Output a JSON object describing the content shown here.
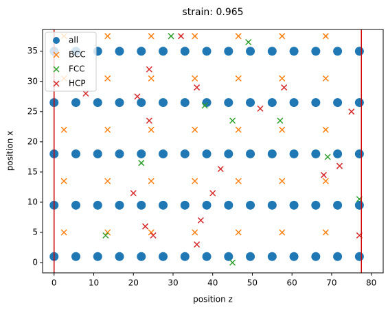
{
  "chart_data": {
    "type": "scatter",
    "title": "strain: 0.965",
    "x_label": "position z",
    "y_label": "position x",
    "xlim": [
      -2.9,
      83
    ],
    "ylim": [
      -1.7,
      38.6
    ],
    "xticks": [
      0,
      10,
      20,
      30,
      40,
      50,
      60,
      70,
      80
    ],
    "yticks": [
      0,
      5,
      10,
      15,
      20,
      25,
      30,
      35
    ],
    "legend": "upper left",
    "vlines": [
      {
        "value": 0,
        "color": "#cc0000"
      },
      {
        "value": 77.5,
        "color": "#cc0000"
      }
    ],
    "series": [
      {
        "name": "all",
        "color": "#1f77b4",
        "marker": "o",
        "x": [
          0,
          5.5,
          11,
          16.5,
          22,
          27.5,
          33,
          38.5,
          44,
          49.5,
          55,
          60.5,
          66,
          71.5,
          77,
          0,
          5.5,
          11,
          16.5,
          22,
          27.5,
          33,
          38.5,
          44,
          49.5,
          55,
          60.5,
          66,
          71.5,
          77,
          0,
          5.5,
          11,
          16.5,
          22,
          27.5,
          33,
          38.5,
          44,
          49.5,
          55,
          60.5,
          66,
          71.5,
          77,
          0,
          5.5,
          11,
          16.5,
          22,
          27.5,
          33,
          38.5,
          44,
          49.5,
          55,
          60.5,
          66,
          71.5,
          77,
          0,
          5.5,
          11,
          16.5,
          22,
          27.5,
          33,
          38.5,
          44,
          49.5,
          55,
          60.5,
          66,
          71.5,
          77
        ],
        "y": [
          1,
          1,
          1,
          1,
          1,
          1,
          1,
          1,
          1,
          1,
          1,
          1,
          1,
          1,
          1,
          9.5,
          9.5,
          9.5,
          9.5,
          9.5,
          9.5,
          9.5,
          9.5,
          9.5,
          9.5,
          9.5,
          9.5,
          9.5,
          9.5,
          9.5,
          18,
          18,
          18,
          18,
          18,
          18,
          18,
          18,
          18,
          18,
          18,
          18,
          18,
          18,
          18,
          26.5,
          26.5,
          26.5,
          26.5,
          26.5,
          26.5,
          26.5,
          26.5,
          26.5,
          26.5,
          26.5,
          26.5,
          26.5,
          26.5,
          26.5,
          35,
          35,
          35,
          35,
          35,
          35,
          35,
          35,
          35,
          35,
          35,
          35,
          35,
          35,
          35
        ]
      },
      {
        "name": "BCC",
        "color": "#ff7f0e",
        "marker": "x",
        "x": [
          2.5,
          13.5,
          24.5,
          35.5,
          46.5,
          57.5,
          68.5,
          2.5,
          13.5,
          24.5,
          35.5,
          46.5,
          57.5,
          68.5,
          2.5,
          13.5,
          24.5,
          35.5,
          46.5,
          57.5,
          68.5,
          2.5,
          13.5,
          24.5,
          35.5,
          46.5,
          57.5,
          68.5,
          2.5,
          13.5,
          24.5,
          35.5,
          46.5,
          57.5,
          68.5
        ],
        "y": [
          5,
          5,
          5,
          5,
          5,
          5,
          5,
          13.5,
          13.5,
          13.5,
          13.5,
          13.5,
          13.5,
          13.5,
          22,
          22,
          22,
          22,
          22,
          22,
          22,
          30.5,
          30.5,
          30.5,
          30.5,
          30.5,
          30.5,
          30.5,
          37.5,
          37.5,
          37.5,
          37.5,
          37.5,
          37.5,
          37.5
        ]
      },
      {
        "name": "FCC",
        "color": "#2ca02c",
        "marker": "x",
        "x": [
          29.5,
          49,
          38,
          45,
          57,
          22,
          69,
          13,
          45,
          77
        ],
        "y": [
          37.5,
          36.5,
          26,
          23.5,
          23.5,
          16.5,
          17.5,
          4.5,
          0,
          10.5
        ]
      },
      {
        "name": "HCP",
        "color": "#d62728",
        "marker": "x",
        "x": [
          32,
          24,
          36,
          58,
          8,
          21,
          52,
          24,
          75,
          42,
          72,
          68,
          20,
          40,
          23,
          25,
          36,
          37,
          77
        ],
        "y": [
          37.5,
          32,
          29,
          29,
          28,
          27.5,
          25.5,
          23.5,
          25,
          15.5,
          16,
          14.5,
          11.5,
          11.5,
          6,
          4.5,
          3,
          7,
          4.5
        ]
      }
    ]
  }
}
